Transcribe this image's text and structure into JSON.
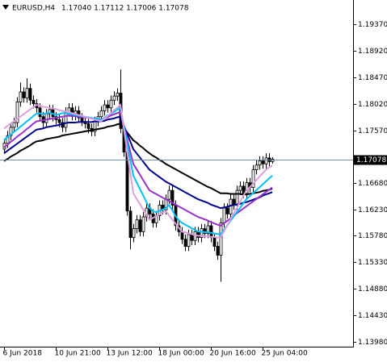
{
  "chart_data": {
    "type": "candlestick",
    "title": "EURUSD,H4",
    "subtitle": "1.17040 1.17112 1.17006 1.17078",
    "categories": [
      "6 Jun 2018",
      null,
      null,
      null,
      null,
      null,
      null,
      null,
      null,
      null,
      null,
      null,
      null,
      null,
      null,
      null,
      "10 Jun 21:00",
      null,
      null,
      null,
      null,
      null,
      null,
      null,
      null,
      null,
      null,
      null,
      null,
      null,
      null,
      null,
      "13 Jun 12:00",
      null,
      null,
      null,
      null,
      null,
      null,
      null,
      null,
      null,
      null,
      null,
      null,
      null,
      null,
      null,
      "18 Jun 00:00",
      null,
      null,
      null,
      null,
      null,
      null,
      null,
      null,
      null,
      null,
      null,
      null,
      null,
      null,
      null,
      "20 Jun 16:00",
      null,
      null,
      null,
      null,
      null,
      null,
      null,
      null,
      null,
      null,
      null,
      null,
      null,
      null,
      null,
      "25 Jun 04:00",
      null,
      null,
      null
    ],
    "open": [
      1.1725,
      1.1735,
      1.1748,
      1.1762,
      1.177,
      1.1805,
      1.1822,
      1.1812,
      1.1828,
      1.1808,
      1.1802,
      1.1795,
      1.178,
      1.177,
      1.1785,
      1.1792,
      1.178,
      1.1775,
      1.177,
      1.1762,
      1.1788,
      1.1795,
      1.1782,
      1.179,
      1.1778,
      1.1772,
      1.1768,
      1.176,
      1.1755,
      1.1772,
      1.178,
      1.179,
      1.18,
      1.1795,
      1.1808,
      1.1815,
      1.182,
      1.176,
      1.172,
      1.162,
      1.1575,
      1.159,
      1.1605,
      1.1585,
      1.161,
      1.1625,
      1.1615,
      1.16,
      1.1612,
      1.163,
      1.1622,
      1.164,
      1.1655,
      1.163,
      1.1595,
      1.1585,
      1.1572,
      1.156,
      1.158,
      1.157,
      1.1585,
      1.1575,
      1.159,
      1.1582,
      1.1595,
      1.1575,
      1.156,
      1.1545,
      1.16,
      1.1625,
      1.1615,
      1.164,
      1.163,
      1.1655,
      1.1662,
      1.165,
      1.1668,
      1.166,
      1.169,
      1.1698,
      1.1705,
      1.17,
      1.171,
      1.1704
    ],
    "high": [
      1.1743,
      1.1756,
      1.177,
      1.1778,
      1.1813,
      1.1838,
      1.183,
      1.1845,
      1.1836,
      1.1816,
      1.181,
      1.1803,
      1.1788,
      1.1793,
      1.18,
      1.18,
      1.1788,
      1.1783,
      1.1778,
      1.1796,
      1.1803,
      1.1803,
      1.1798,
      1.1798,
      1.1786,
      1.178,
      1.1776,
      1.1768,
      1.178,
      1.1788,
      1.1798,
      1.1808,
      1.1808,
      1.1816,
      1.1823,
      1.1828,
      1.186,
      1.1768,
      1.1728,
      1.1628,
      1.1598,
      1.1613,
      1.1613,
      1.1618,
      1.1633,
      1.1633,
      1.1623,
      1.162,
      1.1638,
      1.1638,
      1.1648,
      1.1663,
      1.1663,
      1.1638,
      1.1603,
      1.1593,
      1.158,
      1.1588,
      1.1588,
      1.1593,
      1.1593,
      1.1598,
      1.1598,
      1.1603,
      1.1603,
      1.1583,
      1.1568,
      1.1608,
      1.1633,
      1.1633,
      1.1648,
      1.1648,
      1.1663,
      1.167,
      1.167,
      1.1676,
      1.1676,
      1.1698,
      1.1706,
      1.1713,
      1.1713,
      1.1718,
      1.1718,
      1.17112
    ],
    "low": [
      1.1717,
      1.1727,
      1.174,
      1.1754,
      1.1762,
      1.1797,
      1.1804,
      1.1804,
      1.18,
      1.1794,
      1.1787,
      1.1772,
      1.1762,
      1.1762,
      1.1777,
      1.1772,
      1.1767,
      1.1762,
      1.1754,
      1.1754,
      1.178,
      1.1774,
      1.1774,
      1.177,
      1.1764,
      1.176,
      1.1752,
      1.1747,
      1.1747,
      1.1764,
      1.1772,
      1.1782,
      1.1787,
      1.1787,
      1.18,
      1.1807,
      1.1752,
      1.1712,
      1.1612,
      1.1555,
      1.1567,
      1.1582,
      1.1577,
      1.1577,
      1.1602,
      1.1607,
      1.1592,
      1.1592,
      1.1604,
      1.1614,
      1.1614,
      1.1632,
      1.1622,
      1.1587,
      1.1577,
      1.1564,
      1.1552,
      1.1552,
      1.1562,
      1.1562,
      1.1567,
      1.1567,
      1.1574,
      1.1574,
      1.1567,
      1.1552,
      1.1537,
      1.15,
      1.1592,
      1.1607,
      1.1607,
      1.1622,
      1.1622,
      1.1647,
      1.1642,
      1.1642,
      1.1652,
      1.1652,
      1.1682,
      1.169,
      1.1692,
      1.1692,
      1.1696,
      1.17006
    ],
    "close": [
      1.1735,
      1.1748,
      1.1762,
      1.177,
      1.1805,
      1.1822,
      1.1812,
      1.1828,
      1.1808,
      1.1802,
      1.1795,
      1.178,
      1.177,
      1.1785,
      1.1792,
      1.178,
      1.1775,
      1.177,
      1.1762,
      1.1788,
      1.1795,
      1.1782,
      1.179,
      1.1778,
      1.1772,
      1.1768,
      1.176,
      1.1755,
      1.1772,
      1.178,
      1.179,
      1.18,
      1.1795,
      1.1808,
      1.1815,
      1.182,
      1.176,
      1.172,
      1.162,
      1.1575,
      1.159,
      1.1605,
      1.1585,
      1.161,
      1.1625,
      1.1615,
      1.16,
      1.1612,
      1.163,
      1.1622,
      1.164,
      1.1655,
      1.163,
      1.1595,
      1.1585,
      1.1572,
      1.156,
      1.158,
      1.157,
      1.1585,
      1.1575,
      1.159,
      1.1582,
      1.1595,
      1.1575,
      1.156,
      1.1545,
      1.16,
      1.1625,
      1.1615,
      1.164,
      1.163,
      1.1655,
      1.1662,
      1.165,
      1.1668,
      1.166,
      1.169,
      1.1698,
      1.1705,
      1.17,
      1.171,
      1.1704,
      1.17078
    ],
    "up_color": "#ffffff",
    "down_color": "#000000",
    "series": [
      {
        "color": "#000000",
        "values": [
          1.1705,
          1.1708,
          1.1712,
          1.1715,
          1.1718,
          1.1722,
          1.1725,
          1.1728,
          1.1731,
          1.1735,
          1.1738,
          1.1739,
          1.174,
          1.1742,
          1.1743,
          1.1744,
          1.1745,
          1.1746,
          1.1748,
          1.1749,
          1.175,
          1.1751,
          1.1752,
          1.1753,
          1.1754,
          1.1755,
          1.1756,
          1.1757,
          1.1758,
          1.1759,
          1.176,
          1.1761,
          1.1763,
          1.1764,
          1.1765,
          1.1767,
          1.1768,
          1.1761,
          1.1754,
          1.1747,
          1.174,
          1.1736,
          1.1731,
          1.1727,
          1.1722,
          1.1718,
          1.1714,
          1.1711,
          1.1707,
          1.1704,
          1.17,
          1.1697,
          1.1694,
          1.1691,
          1.1688,
          1.1685,
          1.1682,
          1.1679,
          1.1676,
          1.1673,
          1.167,
          1.1667,
          1.1664,
          1.1661,
          1.1659,
          1.1656,
          1.1653,
          1.165,
          1.165,
          1.165,
          1.1649,
          1.1649,
          1.1649,
          1.1649,
          1.1648,
          1.1648,
          1.1649,
          1.165,
          1.1651,
          1.1652,
          1.1654,
          1.1655,
          1.1656,
          1.1658
        ]
      },
      {
        "color": "#00008b",
        "values": [
          1.1718,
          1.1722,
          1.1726,
          1.173,
          1.1734,
          1.1738,
          1.1742,
          1.1746,
          1.175,
          1.1754,
          1.1758,
          1.1759,
          1.176,
          1.1762,
          1.1763,
          1.1764,
          1.1765,
          1.1766,
          1.1768,
          1.1769,
          1.177,
          1.177,
          1.177,
          1.1771,
          1.1771,
          1.1771,
          1.1771,
          1.1771,
          1.1772,
          1.1772,
          1.1772,
          1.1773,
          1.1775,
          1.1776,
          1.1777,
          1.1779,
          1.178,
          1.1766,
          1.1752,
          1.1739,
          1.1725,
          1.1718,
          1.1711,
          1.1704,
          1.1697,
          1.169,
          1.1686,
          1.1682,
          1.1678,
          1.1674,
          1.167,
          1.1667,
          1.1664,
          1.1661,
          1.1658,
          1.1655,
          1.1652,
          1.1649,
          1.1646,
          1.1643,
          1.164,
          1.1638,
          1.1636,
          1.1634,
          1.1631,
          1.1629,
          1.1627,
          1.1625,
          1.1626,
          1.1627,
          1.1629,
          1.163,
          1.1631,
          1.1632,
          1.1634,
          1.1635,
          1.1637,
          1.1639,
          1.1641,
          1.1643,
          1.1646,
          1.1648,
          1.165,
          1.1652
        ]
      },
      {
        "color": "#9932cc",
        "values": [
          1.1728,
          1.1732,
          1.1737,
          1.1741,
          1.1746,
          1.175,
          1.1754,
          1.1759,
          1.1763,
          1.1768,
          1.1772,
          1.1773,
          1.1774,
          1.1775,
          1.1776,
          1.1777,
          1.1778,
          1.1779,
          1.178,
          1.1781,
          1.1782,
          1.1781,
          1.1781,
          1.178,
          1.1779,
          1.1779,
          1.1778,
          1.1777,
          1.1777,
          1.1776,
          1.1775,
          1.1777,
          1.1779,
          1.1782,
          1.1784,
          1.1786,
          1.1788,
          1.1766,
          1.1744,
          1.1722,
          1.17,
          1.1691,
          1.1682,
          1.1673,
          1.1664,
          1.1655,
          1.1652,
          1.1649,
          1.1646,
          1.1643,
          1.164,
          1.1637,
          1.1634,
          1.1631,
          1.1628,
          1.1625,
          1.1622,
          1.1619,
          1.1616,
          1.1613,
          1.161,
          1.1608,
          1.1606,
          1.1604,
          1.1601,
          1.1599,
          1.1597,
          1.1595,
          1.1599,
          1.1603,
          1.1607,
          1.1612,
          1.1616,
          1.162,
          1.1624,
          1.1628,
          1.1632,
          1.1636,
          1.164,
          1.1644,
          1.1648,
          1.1652,
          1.1656,
          1.166
        ]
      },
      {
        "color": "#00bfff",
        "values": [
          1.174,
          1.1745,
          1.1749,
          1.1754,
          1.1758,
          1.1763,
          1.1767,
          1.1772,
          1.1776,
          1.1781,
          1.1785,
          1.1786,
          1.1784,
          1.1786,
          1.1787,
          1.1785,
          1.1783,
          1.1784,
          1.1786,
          1.1786,
          1.1785,
          1.1784,
          1.1783,
          1.1782,
          1.1781,
          1.178,
          1.1779,
          1.1778,
          1.1777,
          1.1776,
          1.1775,
          1.1778,
          1.1782,
          1.1785,
          1.1788,
          1.1792,
          1.1795,
          1.1766,
          1.1738,
          1.1709,
          1.168,
          1.1669,
          1.1658,
          1.1647,
          1.1636,
          1.1625,
          1.162,
          1.1618,
          1.162,
          1.1622,
          1.1625,
          1.163,
          1.1622,
          1.1612,
          1.1605,
          1.16,
          1.1597,
          1.1594,
          1.1591,
          1.1588,
          1.1585,
          1.1585,
          1.1584,
          1.1584,
          1.1583,
          1.1582,
          1.1581,
          1.158,
          1.1588,
          1.1595,
          1.1603,
          1.161,
          1.1618,
          1.1625,
          1.1633,
          1.164,
          1.1645,
          1.165,
          1.1655,
          1.166,
          1.1665,
          1.167,
          1.1675,
          1.168
        ]
      },
      {
        "color": "#dda0dd",
        "values": [
          1.176,
          1.1764,
          1.1768,
          1.1772,
          1.1776,
          1.178,
          1.1784,
          1.1788,
          1.1792,
          1.1796,
          1.18,
          1.1799,
          1.1797,
          1.1796,
          1.1795,
          1.1794,
          1.1793,
          1.1791,
          1.179,
          1.1789,
          1.1788,
          1.1786,
          1.1785,
          1.1783,
          1.1782,
          1.178,
          1.1778,
          1.1777,
          1.1775,
          1.1774,
          1.1772,
          1.1777,
          1.1781,
          1.1786,
          1.1791,
          1.1795,
          1.18,
          1.1762,
          1.1725,
          1.1687,
          1.165,
          1.1641,
          1.1632,
          1.1623,
          1.1614,
          1.1605,
          1.1608,
          1.1611,
          1.1614,
          1.1617,
          1.162,
          1.1613,
          1.1606,
          1.1599,
          1.1592,
          1.1585,
          1.1584,
          1.1582,
          1.1581,
          1.1579,
          1.1578,
          1.1578,
          1.1577,
          1.1577,
          1.1576,
          1.1576,
          1.1575,
          1.1575,
          1.1585,
          1.1595,
          1.1605,
          1.1615,
          1.1625,
          1.1635,
          1.1645,
          1.1655,
          1.166,
          1.1666,
          1.1672,
          1.1678,
          1.1684,
          1.169,
          1.1694,
          1.1697
        ]
      }
    ],
    "price_line": {
      "value": 1.17078,
      "label": "1.17078",
      "color": "#6f8fad"
    },
    "ylim": [
      1.13898,
      1.1978
    ],
    "yticks": [
      {
        "value": 1.1937,
        "label": "1.19370"
      },
      {
        "value": 1.1892,
        "label": "1.18920"
      },
      {
        "value": 1.1847,
        "label": "1.18470"
      },
      {
        "value": 1.1802,
        "label": "1.18020"
      },
      {
        "value": 1.1757,
        "label": "1.17570"
      },
      {
        "value": 1.1668,
        "label": "1.16680"
      },
      {
        "value": 1.1623,
        "label": "1.16230"
      },
      {
        "value": 1.1578,
        "label": "1.15780"
      },
      {
        "value": 1.1533,
        "label": "1.15330"
      },
      {
        "value": 1.1488,
        "label": "1.14880"
      },
      {
        "value": 1.1443,
        "label": "1.14430"
      },
      {
        "value": 1.1398,
        "label": "1.13980"
      }
    ],
    "grid": false
  }
}
